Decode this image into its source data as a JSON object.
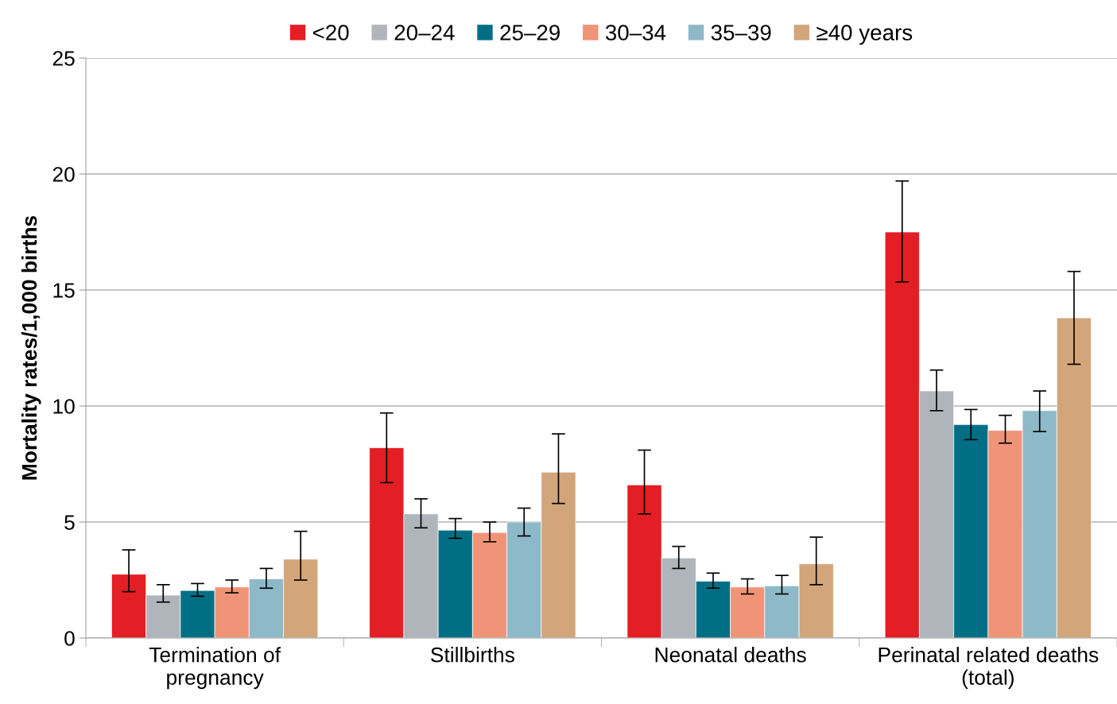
{
  "chart_data": {
    "type": "bar",
    "ylabel": "Mortality rates/1,000 births",
    "categories": [
      "Termination of\npregnancy",
      "Stillbirths",
      "Neonatal deaths",
      "Perinatal related deaths\n(total)"
    ],
    "series": [
      {
        "name": "<20",
        "color": "#e31e24",
        "values": [
          2.75,
          8.2,
          6.6,
          17.5
        ],
        "errors": [
          [
            2.0,
            3.8
          ],
          [
            6.7,
            9.7
          ],
          [
            5.35,
            8.1
          ],
          [
            15.35,
            19.7
          ]
        ]
      },
      {
        "name": "20–24",
        "color": "#afb5bb",
        "values": [
          1.85,
          5.35,
          3.45,
          10.65
        ],
        "errors": [
          [
            1.55,
            2.3
          ],
          [
            4.75,
            6.0
          ],
          [
            3.0,
            3.95
          ],
          [
            9.8,
            11.55
          ]
        ]
      },
      {
        "name": "25–29",
        "color": "#006f85",
        "values": [
          2.05,
          4.65,
          2.45,
          9.2
        ],
        "errors": [
          [
            1.8,
            2.35
          ],
          [
            4.3,
            5.15
          ],
          [
            2.15,
            2.8
          ],
          [
            8.55,
            9.85
          ]
        ]
      },
      {
        "name": "30–34",
        "color": "#f09478",
        "values": [
          2.2,
          4.55,
          2.2,
          8.95
        ],
        "errors": [
          [
            1.95,
            2.5
          ],
          [
            4.15,
            5.0
          ],
          [
            1.9,
            2.55
          ],
          [
            8.4,
            9.6
          ]
        ]
      },
      {
        "name": "35–39",
        "color": "#8db9c9",
        "values": [
          2.55,
          5.0,
          2.25,
          9.8
        ],
        "errors": [
          [
            2.15,
            3.0
          ],
          [
            4.4,
            5.6
          ],
          [
            1.9,
            2.7
          ],
          [
            8.9,
            10.65
          ]
        ]
      },
      {
        "name": "≥40 years",
        "color": "#d2a67a",
        "values": [
          3.4,
          7.15,
          3.2,
          13.8
        ],
        "errors": [
          [
            2.5,
            4.6
          ],
          [
            5.8,
            8.8
          ],
          [
            2.3,
            4.35
          ],
          [
            11.8,
            15.8
          ]
        ]
      }
    ],
    "ylim": [
      0,
      25
    ],
    "yticks": [
      0,
      5,
      10,
      15,
      20,
      25
    ],
    "grid": "y",
    "legend": "top"
  }
}
